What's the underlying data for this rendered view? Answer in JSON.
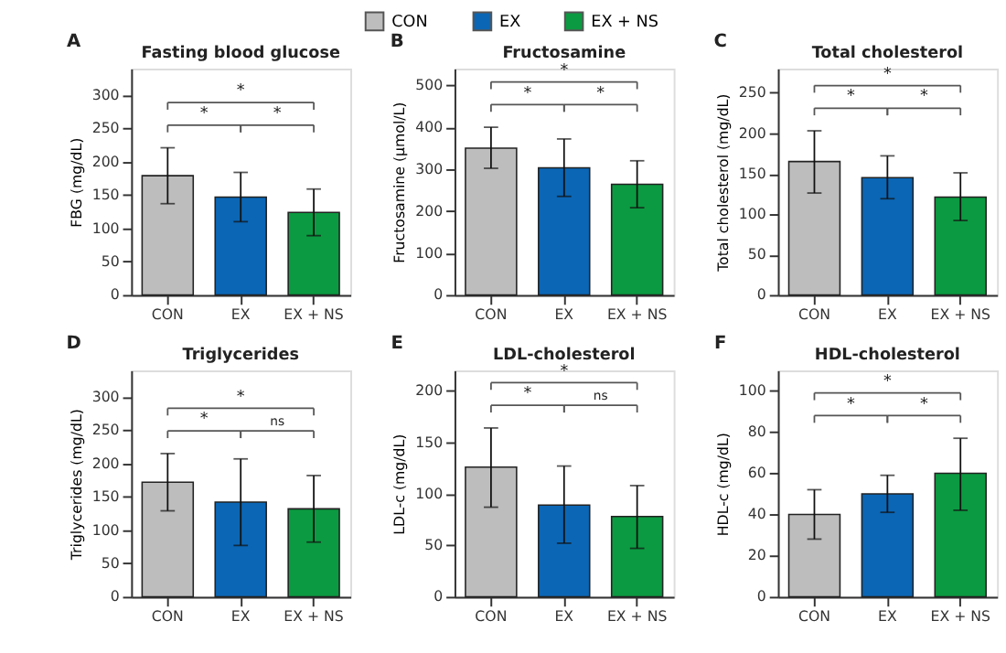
{
  "chart_data": [
    {
      "type": "bar",
      "title": "Fasting blood glucose",
      "ylabel": "FBG (mg/dL)",
      "categories": [
        "CON",
        "EX",
        "EX + NS"
      ],
      "series": [
        {
          "color": "#bdbdbd",
          "values": [
            179,
            null,
            null
          ],
          "errors": [
            [
              137,
              221
            ],
            null,
            null
          ]
        },
        {
          "color": "#0b66b5",
          "values": [
            null,
            147,
            null
          ],
          "errors": [
            null,
            [
              110,
              184
            ],
            null
          ]
        },
        {
          "color": "#0b9a41",
          "values": [
            null,
            null,
            124
          ],
          "errors": [
            null,
            null,
            [
              89,
              159
            ]
          ]
        }
      ],
      "ylim": [
        0,
        340
      ],
      "yticks": [
        0,
        50,
        100,
        150,
        200,
        250,
        300
      ],
      "grid": false,
      "annotations": [
        "A",
        "*",
        "*",
        "*"
      ]
    },
    {
      "type": "bar",
      "title": "Fructosamine",
      "ylabel": "Fructosamine (μmol/L)",
      "categories": [
        "CON",
        "EX",
        "EX + NS"
      ],
      "series": [
        {
          "name": "CON",
          "color": "#bdbdbd",
          "values": [
            350,
            null,
            null
          ],
          "errors": [
            [
              302,
              400
            ],
            null,
            null
          ]
        },
        {
          "name": "EX",
          "color": "#0b66b5",
          "values": [
            null,
            303,
            null
          ],
          "errors": [
            null,
            [
              235,
              372
            ],
            null
          ]
        },
        {
          "name": "EX + NS",
          "color": "#0b9a41",
          "values": [
            null,
            null,
            264
          ],
          "errors": [
            null,
            null,
            [
              208,
              320
            ]
          ]
        }
      ],
      "ylim": [
        0,
        540
      ],
      "yticks": [
        0,
        100,
        200,
        300,
        400,
        500
      ],
      "grid": false,
      "legend": "top",
      "annotations": [
        "B",
        "*",
        "*",
        "*"
      ]
    },
    {
      "type": "bar",
      "title": "Total cholesterol",
      "ylabel": "Total cholesterol (mg/dL)",
      "categories": [
        "CON",
        "EX",
        "EX + NS"
      ],
      "series": [
        {
          "color": "#bdbdbd",
          "values": [
            165,
            null,
            null
          ],
          "errors": [
            [
              126,
              203
            ],
            null,
            null
          ]
        },
        {
          "color": "#0b66b5",
          "values": [
            null,
            145,
            null
          ],
          "errors": [
            null,
            [
              119,
              172
            ],
            null
          ]
        },
        {
          "color": "#0b9a41",
          "values": [
            null,
            null,
            121
          ],
          "errors": [
            null,
            null,
            [
              92,
              151
            ]
          ]
        }
      ],
      "ylim": [
        0,
        280
      ],
      "yticks": [
        0,
        50,
        100,
        150,
        200,
        250
      ],
      "grid": false,
      "annotations": [
        "C",
        "*",
        "*",
        "*"
      ]
    },
    {
      "type": "bar",
      "title": "Triglycerides",
      "ylabel": "Triglycerides (mg/dL)",
      "categories": [
        "CON",
        "EX",
        "EX + NS"
      ],
      "series": [
        {
          "color": "#bdbdbd",
          "values": [
            172,
            null,
            null
          ],
          "errors": [
            [
              129,
              215
            ],
            null,
            null
          ]
        },
        {
          "color": "#0b66b5",
          "values": [
            null,
            142,
            null
          ],
          "errors": [
            null,
            [
              77,
              207
            ],
            null
          ]
        },
        {
          "color": "#0b9a41",
          "values": [
            null,
            null,
            132
          ],
          "errors": [
            null,
            null,
            [
              82,
              182
            ]
          ]
        }
      ],
      "ylim": [
        0,
        340
      ],
      "yticks": [
        0,
        50,
        100,
        150,
        200,
        250,
        300
      ],
      "grid": false,
      "annotations": [
        "D",
        "*",
        "*",
        "ns"
      ]
    },
    {
      "type": "bar",
      "title": "LDL-cholesterol",
      "ylabel": "LDL-c (mg/dL)",
      "categories": [
        "CON",
        "EX",
        "EX + NS"
      ],
      "series": [
        {
          "color": "#bdbdbd",
          "values": [
            126,
            null,
            null
          ],
          "errors": [
            [
              87,
              164
            ],
            null,
            null
          ]
        },
        {
          "color": "#0b66b5",
          "values": [
            null,
            89,
            null
          ],
          "errors": [
            null,
            [
              52,
              127
            ],
            null
          ]
        },
        {
          "color": "#0b9a41",
          "values": [
            null,
            null,
            78
          ],
          "errors": [
            null,
            null,
            [
              47,
              108
            ]
          ]
        }
      ],
      "ylim": [
        0,
        220
      ],
      "yticks": [
        0,
        50,
        100,
        150,
        200
      ],
      "grid": false,
      "annotations": [
        "E",
        "*",
        "*",
        "ns"
      ]
    },
    {
      "type": "bar",
      "title": "HDL-cholesterol",
      "ylabel": "HDL-c (mg/dL)",
      "categories": [
        "CON",
        "EX",
        "EX + NS"
      ],
      "series": [
        {
          "color": "#bdbdbd",
          "values": [
            40,
            null,
            null
          ],
          "errors": [
            [
              28,
              52
            ],
            null,
            null
          ]
        },
        {
          "color": "#0b66b5",
          "values": [
            null,
            50,
            null
          ],
          "errors": [
            null,
            [
              41,
              59
            ],
            null
          ]
        },
        {
          "color": "#0b9a41",
          "values": [
            null,
            null,
            60
          ],
          "errors": [
            null,
            null,
            [
              42,
              77
            ]
          ]
        }
      ],
      "ylim": [
        0,
        110
      ],
      "yticks": [
        0,
        20,
        40,
        60,
        80,
        100
      ],
      "grid": false,
      "annotations": [
        "F",
        "*",
        "*",
        "*"
      ]
    }
  ]
}
